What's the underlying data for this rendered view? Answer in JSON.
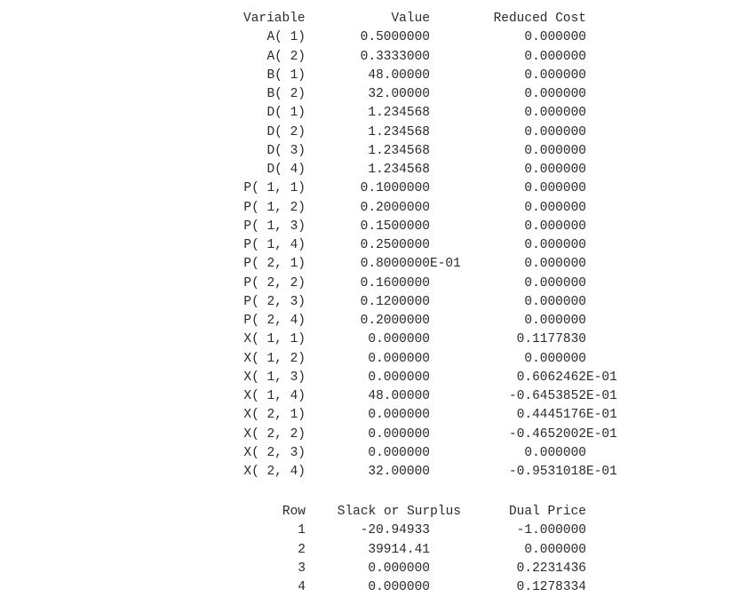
{
  "variables_section": {
    "headers": {
      "variable": "Variable",
      "value": "Value",
      "reduced_cost": "Reduced Cost"
    },
    "rows": [
      {
        "variable": "A( 1)",
        "value": "0.5000000",
        "reduced_cost": "0.000000"
      },
      {
        "variable": "A( 2)",
        "value": "0.3333000",
        "reduced_cost": "0.000000"
      },
      {
        "variable": "B( 1)",
        "value": "48.00000",
        "reduced_cost": "0.000000"
      },
      {
        "variable": "B( 2)",
        "value": "32.00000",
        "reduced_cost": "0.000000"
      },
      {
        "variable": "D( 1)",
        "value": "1.234568",
        "reduced_cost": "0.000000"
      },
      {
        "variable": "D( 2)",
        "value": "1.234568",
        "reduced_cost": "0.000000"
      },
      {
        "variable": "D( 3)",
        "value": "1.234568",
        "reduced_cost": "0.000000"
      },
      {
        "variable": "D( 4)",
        "value": "1.234568",
        "reduced_cost": "0.000000"
      },
      {
        "variable": "P( 1, 1)",
        "value": "0.1000000",
        "reduced_cost": "0.000000"
      },
      {
        "variable": "P( 1, 2)",
        "value": "0.2000000",
        "reduced_cost": "0.000000"
      },
      {
        "variable": "P( 1, 3)",
        "value": "0.1500000",
        "reduced_cost": "0.000000"
      },
      {
        "variable": "P( 1, 4)",
        "value": "0.2500000",
        "reduced_cost": "0.000000"
      },
      {
        "variable": "P( 2, 1)",
        "value": "0.8000000E-01",
        "reduced_cost": "0.000000"
      },
      {
        "variable": "P( 2, 2)",
        "value": "0.1600000",
        "reduced_cost": "0.000000"
      },
      {
        "variable": "P( 2, 3)",
        "value": "0.1200000",
        "reduced_cost": "0.000000"
      },
      {
        "variable": "P( 2, 4)",
        "value": "0.2000000",
        "reduced_cost": "0.000000"
      },
      {
        "variable": "X( 1, 1)",
        "value": "0.000000",
        "reduced_cost": "0.1177830"
      },
      {
        "variable": "X( 1, 2)",
        "value": "0.000000",
        "reduced_cost": "0.000000"
      },
      {
        "variable": "X( 1, 3)",
        "value": "0.000000",
        "reduced_cost": "0.6062462E-01"
      },
      {
        "variable": "X( 1, 4)",
        "value": "48.00000",
        "reduced_cost": "-0.6453852E-01"
      },
      {
        "variable": "X( 2, 1)",
        "value": "0.000000",
        "reduced_cost": "0.4445176E-01"
      },
      {
        "variable": "X( 2, 2)",
        "value": "0.000000",
        "reduced_cost": "-0.4652002E-01"
      },
      {
        "variable": "X( 2, 3)",
        "value": "0.000000",
        "reduced_cost": "0.000000"
      },
      {
        "variable": "X( 2, 4)",
        "value": "32.00000",
        "reduced_cost": "-0.9531018E-01"
      }
    ]
  },
  "rows_section": {
    "headers": {
      "row": "Row",
      "slack": "Slack or Surplus",
      "dual_price": "Dual Price"
    },
    "rows": [
      {
        "row": "1",
        "slack": "-20.94933",
        "dual_price": "-1.000000"
      },
      {
        "row": "2",
        "slack": "39914.41",
        "dual_price": "0.000000"
      },
      {
        "row": "3",
        "slack": "0.000000",
        "dual_price": "0.2231436"
      },
      {
        "row": "4",
        "slack": "0.000000",
        "dual_price": "0.1278334"
      }
    ]
  }
}
